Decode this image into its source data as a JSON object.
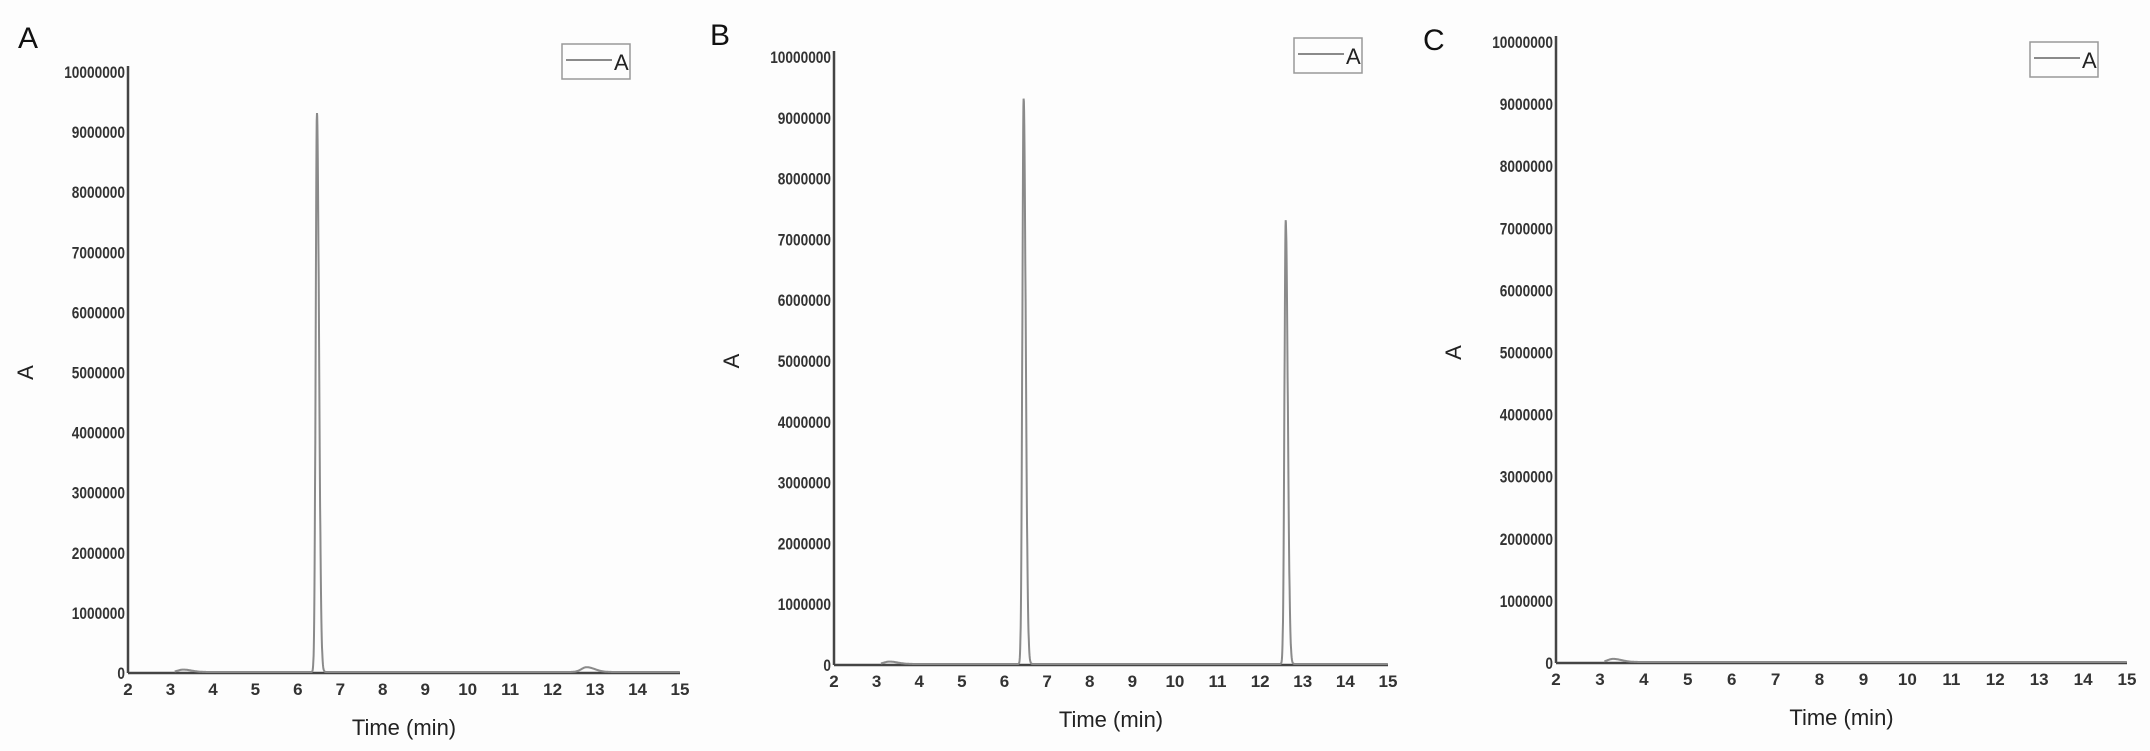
{
  "chart_data": [
    {
      "panel_label": "A",
      "type": "line",
      "xlabel": "Time (min)",
      "ylabel": "A",
      "xlim": [
        2,
        15
      ],
      "ylim": [
        0,
        10000000
      ],
      "xticks": [
        "2",
        "3",
        "4",
        "5",
        "6",
        "7",
        "8",
        "9",
        "10",
        "11",
        "12",
        "13",
        "14",
        "15"
      ],
      "yticks": [
        "0",
        "1000000",
        "2000000",
        "3000000",
        "4000000",
        "5000000",
        "6000000",
        "7000000",
        "8000000",
        "9000000",
        "10000000"
      ],
      "legend": {
        "entries": [
          "A"
        ],
        "placement": "top-right"
      },
      "grid": false,
      "line_color": "#8a8a8a",
      "peaks": [
        {
          "time": 3.3,
          "height": 40000
        },
        {
          "time": 6.45,
          "height": 9300000
        },
        {
          "time": 12.8,
          "height": 80000
        }
      ]
    },
    {
      "panel_label": "B",
      "type": "line",
      "xlabel": "Time (min)",
      "ylabel": "A",
      "xlim": [
        2,
        15
      ],
      "ylim": [
        0,
        10000000
      ],
      "xticks": [
        "2",
        "3",
        "4",
        "5",
        "6",
        "7",
        "8",
        "9",
        "10",
        "11",
        "12",
        "13",
        "14",
        "15"
      ],
      "yticks": [
        "0",
        "1000000",
        "2000000",
        "3000000",
        "4000000",
        "5000000",
        "6000000",
        "7000000",
        "8000000",
        "9000000",
        "10000000"
      ],
      "legend": {
        "entries": [
          "A"
        ],
        "placement": "top-right"
      },
      "grid": false,
      "line_color": "#8a8a8a",
      "peaks": [
        {
          "time": 3.3,
          "height": 40000
        },
        {
          "time": 6.45,
          "height": 9300000
        },
        {
          "time": 12.6,
          "height": 7300000
        }
      ]
    },
    {
      "panel_label": "C",
      "type": "line",
      "xlabel": "Time (min)",
      "ylabel": "A",
      "xlim": [
        2,
        15
      ],
      "ylim": [
        0,
        10000000
      ],
      "xticks": [
        "2",
        "3",
        "4",
        "5",
        "6",
        "7",
        "8",
        "9",
        "10",
        "11",
        "12",
        "13",
        "14",
        "15"
      ],
      "yticks": [
        "0",
        "1000000",
        "2000000",
        "3000000",
        "4000000",
        "5000000",
        "6000000",
        "7000000",
        "8000000",
        "9000000",
        "10000000"
      ],
      "legend": {
        "entries": [
          "A"
        ],
        "placement": "top-right"
      },
      "grid": false,
      "line_color": "#8a8a8a",
      "peaks": [
        {
          "time": 3.3,
          "height": 50000
        }
      ]
    }
  ]
}
